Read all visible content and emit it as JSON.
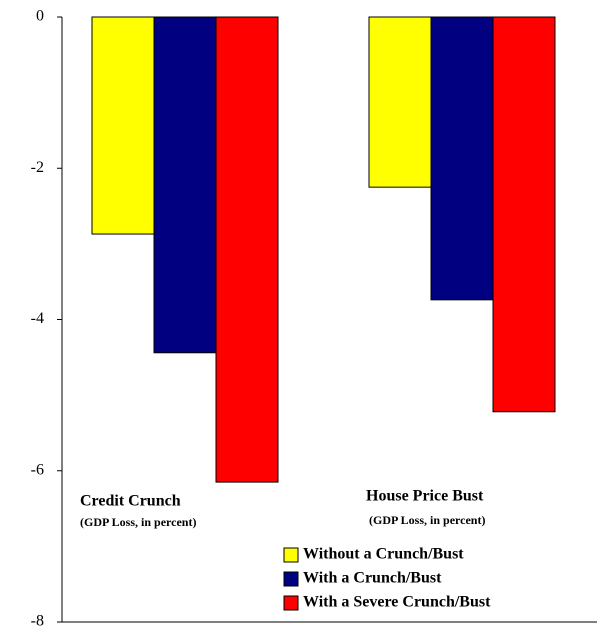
{
  "chart_data": {
    "type": "bar",
    "categories": [
      "Credit Crunch",
      "House Price Bust"
    ],
    "category_note": "(GDP Loss, in percent)",
    "series": [
      {
        "name": "Without a Crunch/Bust",
        "color": "#ffff00",
        "values": [
          -2.87,
          -2.25
        ]
      },
      {
        "name": "With a Crunch/Bust",
        "color": "#000080",
        "values": [
          -4.44,
          -3.74
        ]
      },
      {
        "name": "With a Severe Crunch/Bust",
        "color": "#ff0000",
        "values": [
          -6.15,
          -5.22
        ]
      }
    ],
    "ylim": [
      -8,
      0
    ],
    "yticks": [
      0,
      -2,
      -4,
      -6,
      -8
    ],
    "grid": false
  }
}
